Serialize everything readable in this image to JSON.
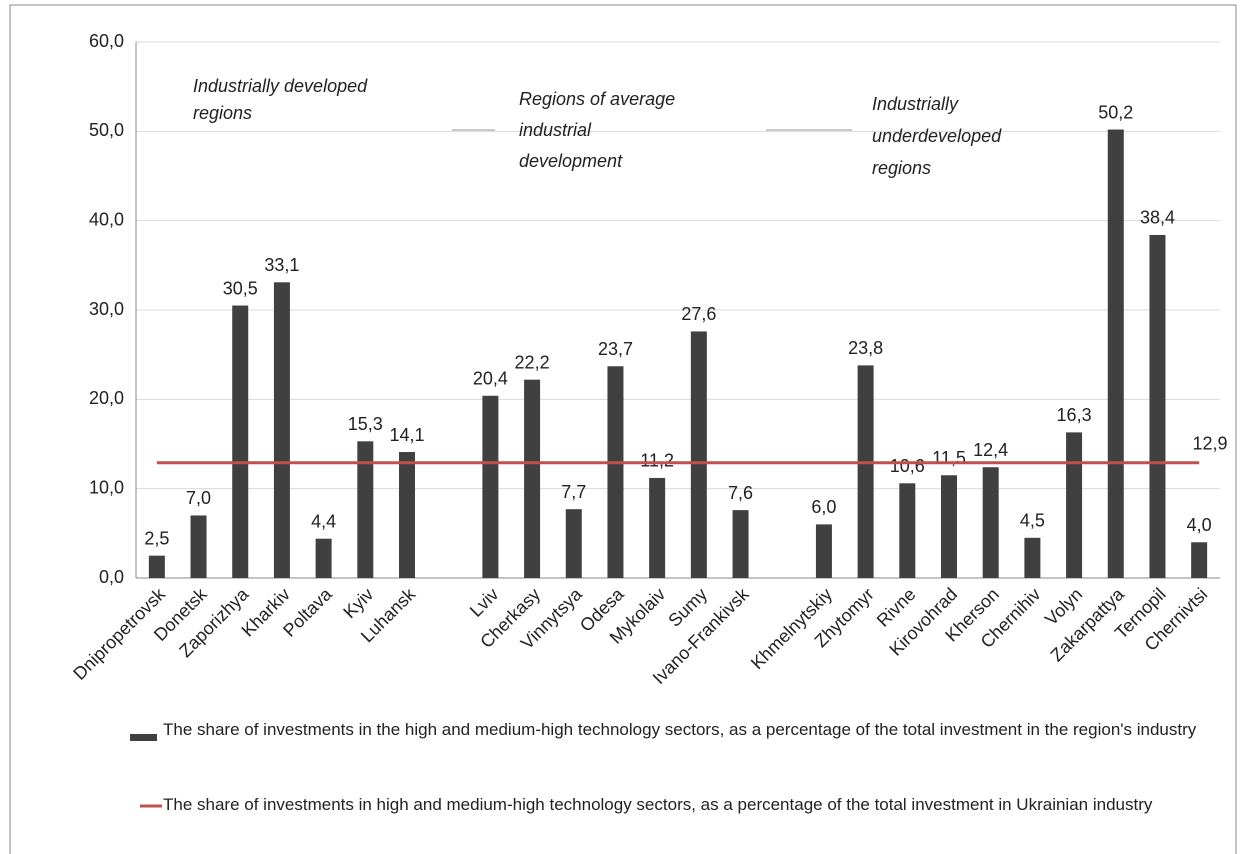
{
  "chart_data": {
    "type": "bar",
    "categories": [
      "Dnipropetrovsk",
      "Donetsk",
      "Zaporizhya",
      "Kharkiv",
      "Poltava",
      "Kyiv",
      "Luhansk",
      null,
      "Lviv",
      "Cherkasy",
      "Vinnytsya",
      "Odesa",
      "Mykolaiv",
      "Sumy",
      "Ivano-Frankivsk",
      null,
      "Khmelnytskiy",
      "Zhytomyr",
      "Rivne",
      "Kirovohrad",
      "Kherson",
      "Chernihiv",
      "Volyn",
      "Zakarpattya",
      "Ternopil",
      "Chernivtsi"
    ],
    "series": [
      {
        "name": "The share of investments in the high and medium-high technology sectors, as a percentage of the total investment in the region's industry",
        "color": "#404040",
        "values": [
          2.5,
          7.0,
          30.5,
          33.1,
          4.4,
          15.3,
          14.1,
          null,
          20.4,
          22.2,
          7.7,
          23.7,
          11.2,
          27.6,
          7.6,
          null,
          6.0,
          23.8,
          10.6,
          11.5,
          12.4,
          4.5,
          16.3,
          50.2,
          38.4,
          4.0
        ],
        "value_labels": [
          "2,5",
          "7,0",
          "30,5",
          "33,1",
          "4,4",
          "15,3",
          "14,1",
          null,
          "20,4",
          "22,2",
          "7,7",
          "23,7",
          "11,2",
          "27,6",
          "7,6",
          null,
          "6,0",
          "23,8",
          "10,6",
          "11,5",
          "12,4",
          "4,5",
          "16,3",
          "50,2",
          "38,4",
          "4,0"
        ]
      },
      {
        "name": "The share of investments in high and medium-high technology sectors, as a percentage of the total investment in Ukrainian industry",
        "color": "#c0504d",
        "type": "line",
        "value": 12.9,
        "value_label": "12,9"
      }
    ],
    "annotations": [
      {
        "lines": [
          "Industrially developed",
          "regions"
        ]
      },
      {
        "lines": [
          "Regions of average",
          "industrial",
          "development"
        ]
      },
      {
        "lines": [
          "Industrially",
          "underdeveloped",
          "regions"
        ]
      }
    ],
    "ylim": [
      0,
      60
    ],
    "yticks": [
      {
        "value": 0,
        "label": "0,0"
      },
      {
        "value": 10,
        "label": "10,0"
      },
      {
        "value": 20,
        "label": "20,0"
      },
      {
        "value": 30,
        "label": "30,0"
      },
      {
        "value": 40,
        "label": "40,0"
      },
      {
        "value": 50,
        "label": "50,0"
      },
      {
        "value": 60,
        "label": "60,0"
      }
    ],
    "grid": true
  }
}
